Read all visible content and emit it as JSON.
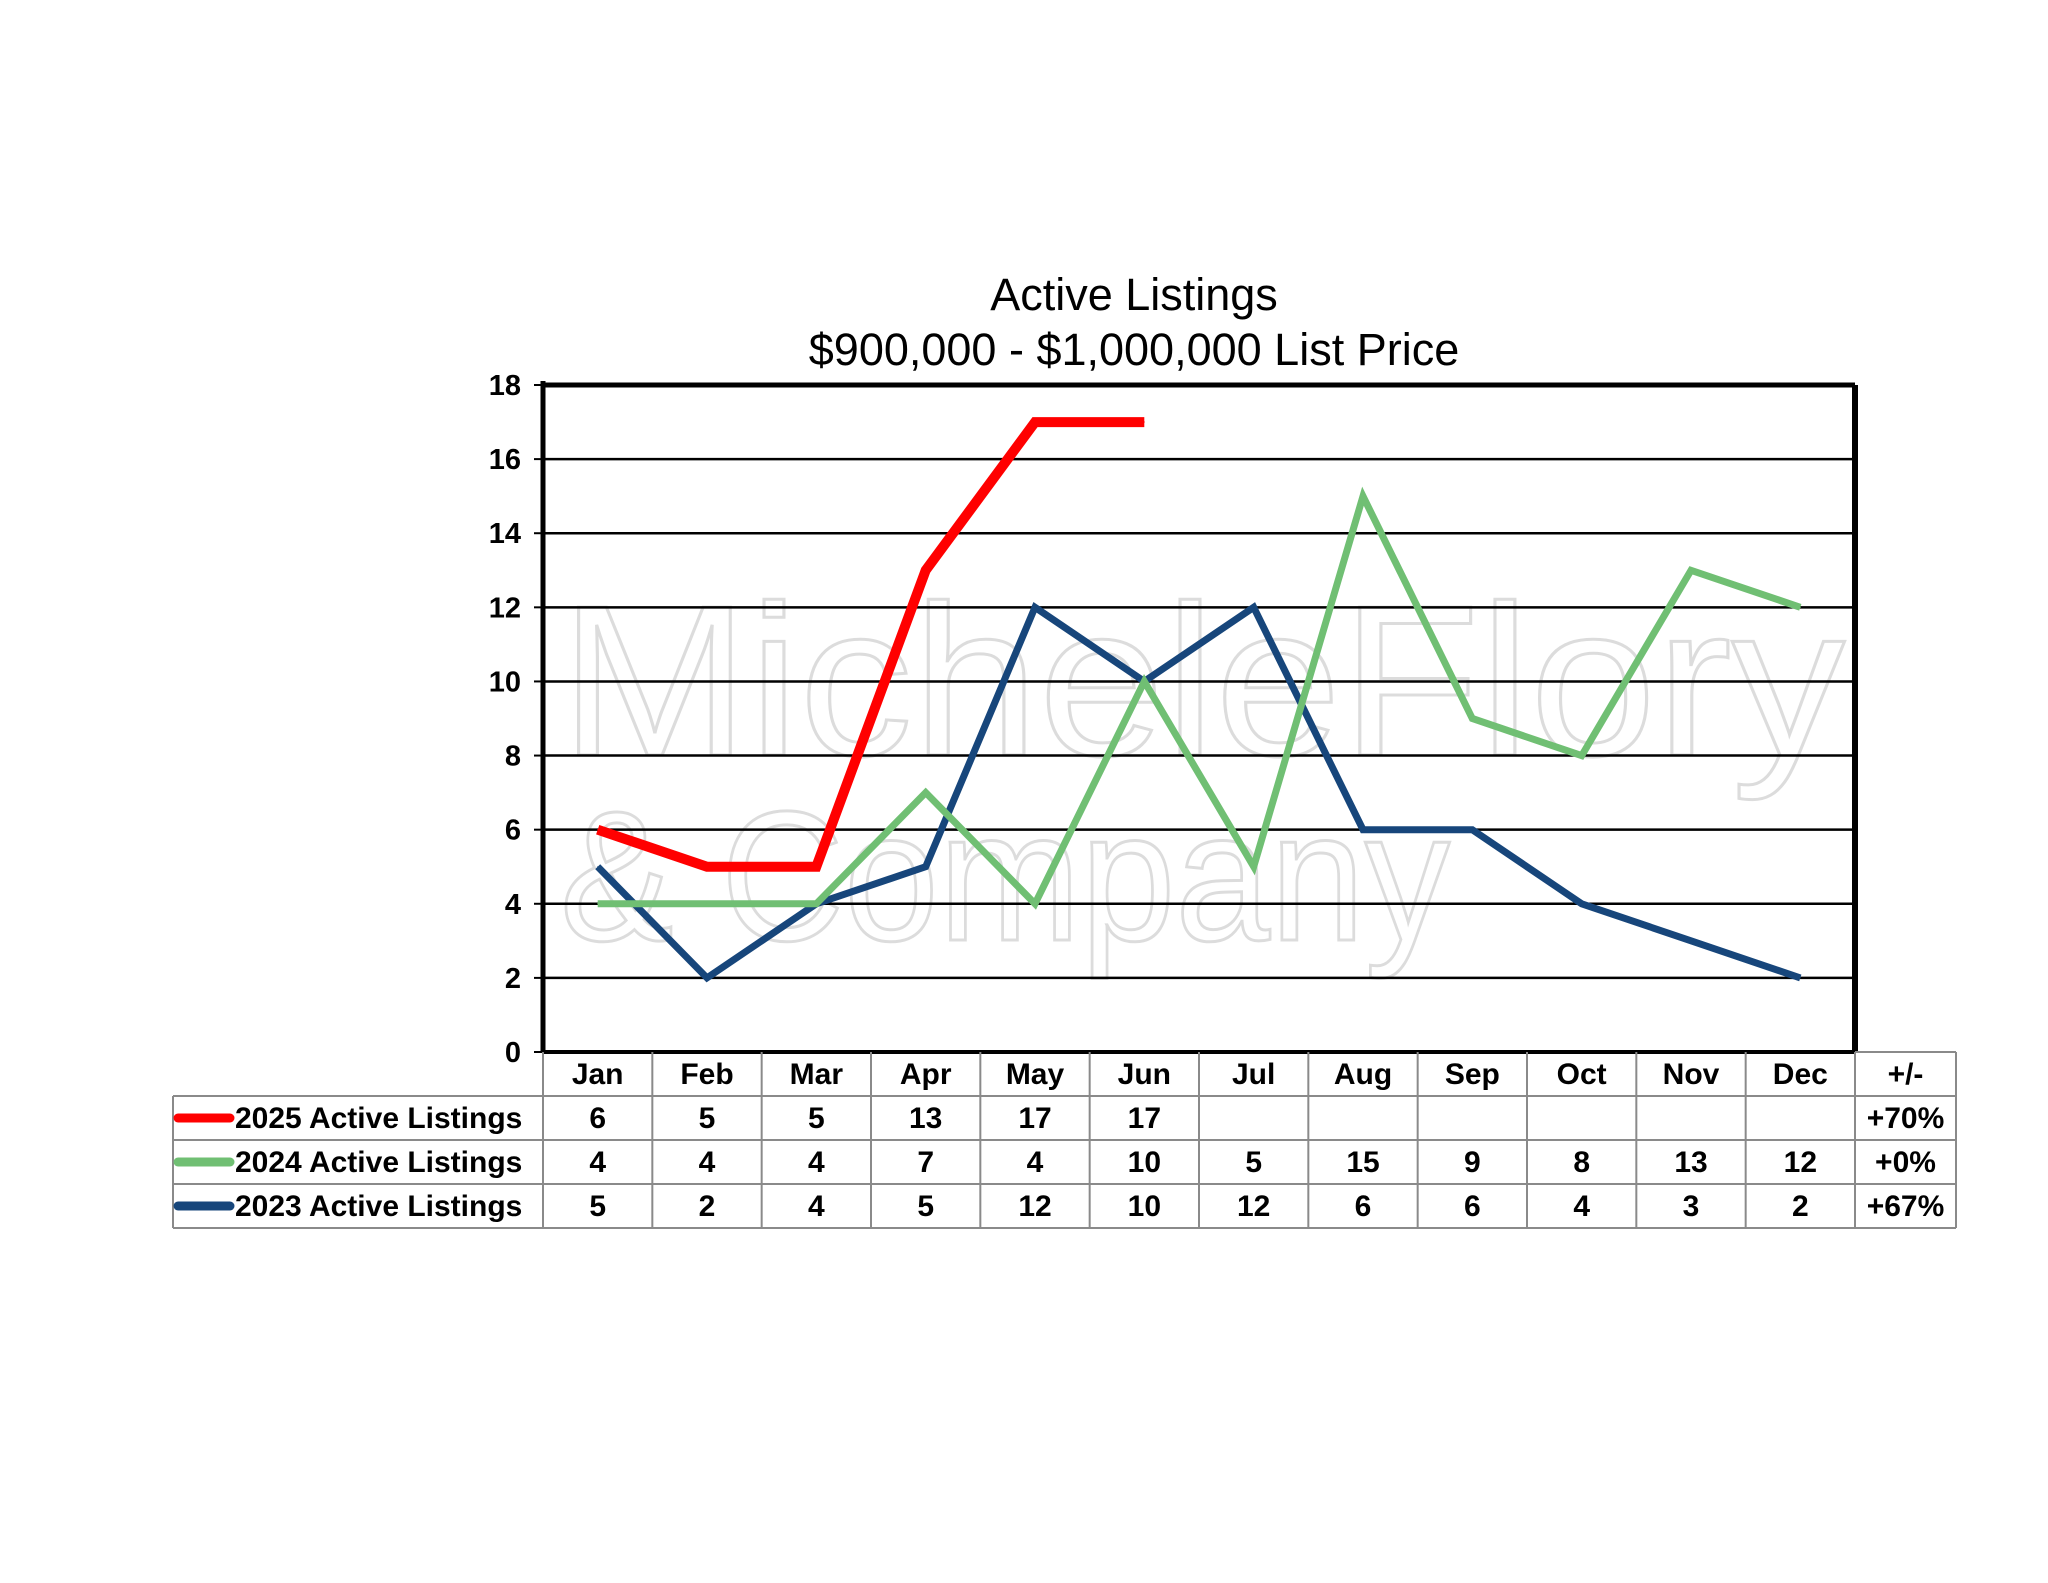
{
  "chart_data": {
    "type": "line",
    "title": "Active Listings",
    "subtitle": "$900,000 - $1,000,000 List Price",
    "categories": [
      "Jan",
      "Feb",
      "Mar",
      "Apr",
      "May",
      "Jun",
      "Jul",
      "Aug",
      "Sep",
      "Oct",
      "Nov",
      "Dec"
    ],
    "change_header": "+/-",
    "ylim": [
      0,
      18
    ],
    "yticks": [
      0,
      2,
      4,
      6,
      8,
      10,
      12,
      14,
      16,
      18
    ],
    "grid": true,
    "series": [
      {
        "name": "2025 Active Listings",
        "color": "#ff0000",
        "values": [
          6,
          5,
          5,
          13,
          17,
          17,
          null,
          null,
          null,
          null,
          null,
          null
        ],
        "change": "+70%"
      },
      {
        "name": "2024 Active Listings",
        "color": "#70bf73",
        "values": [
          4,
          4,
          4,
          7,
          4,
          10,
          5,
          15,
          9,
          8,
          13,
          12
        ],
        "change": "+0%"
      },
      {
        "name": "2023 Active Listings",
        "color": "#17467b",
        "values": [
          5,
          2,
          4,
          5,
          12,
          10,
          12,
          6,
          6,
          4,
          3,
          2
        ],
        "change": "+67%"
      }
    ],
    "watermark": [
      "MicheleFlory",
      "& Company"
    ]
  }
}
